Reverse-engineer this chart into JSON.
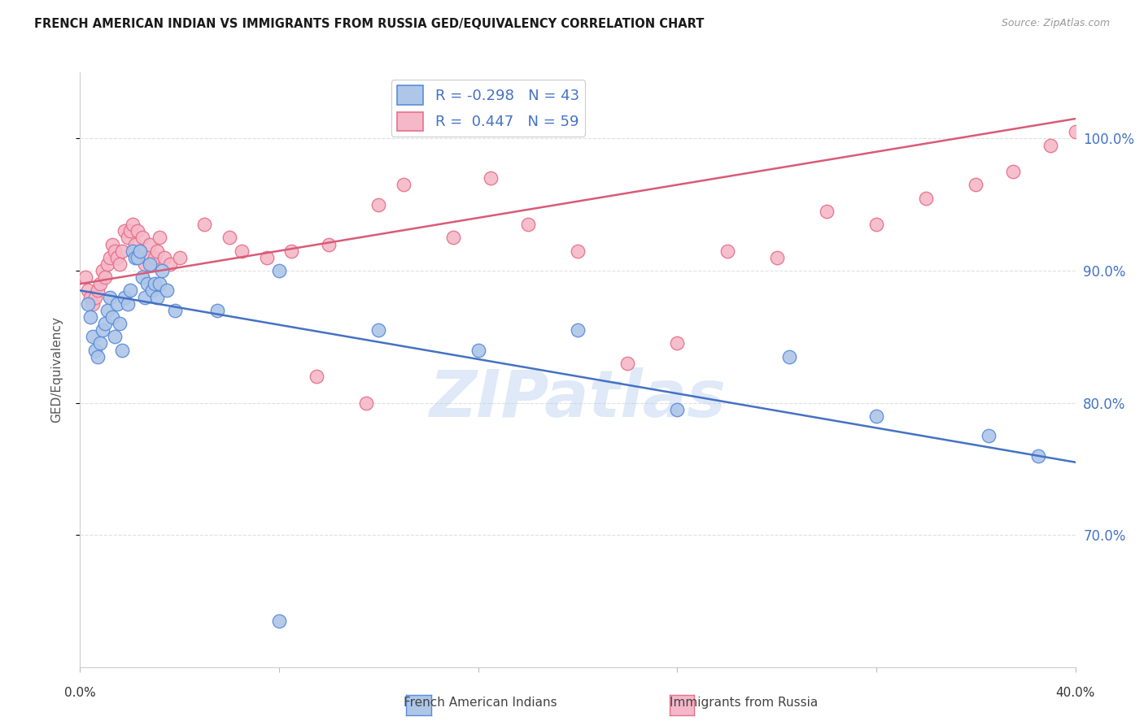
{
  "title": "FRENCH AMERICAN INDIAN VS IMMIGRANTS FROM RUSSIA GED/EQUIVALENCY CORRELATION CHART",
  "source": "Source: ZipAtlas.com",
  "ylabel": "GED/Equivalency",
  "x_min": 0.0,
  "x_max": 40.0,
  "y_min": 60.0,
  "y_max": 105.0,
  "y_ticks": [
    70.0,
    80.0,
    90.0,
    100.0
  ],
  "y_tick_labels": [
    "70.0%",
    "80.0%",
    "90.0%",
    "100.0%"
  ],
  "x_ticks": [
    0,
    8,
    16,
    24,
    32,
    40
  ],
  "legend_r_blue": "-0.298",
  "legend_n_blue": "43",
  "legend_r_pink": "0.447",
  "legend_n_pink": "59",
  "blue_fill": "#aec6e8",
  "pink_fill": "#f4b8c8",
  "blue_edge": "#5b8dd9",
  "pink_edge": "#e8708a",
  "blue_line": "#4472c4",
  "pink_line": "#d95b78",
  "watermark": "ZIPatlas",
  "blue_scatter_x": [
    0.3,
    0.4,
    0.5,
    0.6,
    0.7,
    0.8,
    0.9,
    1.0,
    1.1,
    1.2,
    1.3,
    1.4,
    1.5,
    1.6,
    1.7,
    1.8,
    1.9,
    2.0,
    2.1,
    2.2,
    2.3,
    2.4,
    2.5,
    2.6,
    2.7,
    2.8,
    2.9,
    3.0,
    3.1,
    3.2,
    3.3,
    3.5,
    3.8,
    5.5,
    8.0,
    12.0,
    16.0,
    20.0,
    24.0,
    28.5,
    32.0,
    36.5,
    38.5
  ],
  "blue_scatter_y": [
    87.5,
    86.5,
    85.0,
    84.0,
    83.5,
    84.5,
    85.5,
    86.0,
    87.0,
    88.0,
    86.5,
    85.0,
    87.5,
    86.0,
    84.0,
    88.0,
    87.5,
    88.5,
    91.5,
    91.0,
    91.0,
    91.5,
    89.5,
    88.0,
    89.0,
    90.5,
    88.5,
    89.0,
    88.0,
    89.0,
    90.0,
    88.5,
    87.0,
    87.0,
    90.0,
    85.5,
    84.0,
    85.5,
    79.5,
    83.5,
    79.0,
    77.5,
    76.0
  ],
  "pink_scatter_x": [
    0.2,
    0.3,
    0.4,
    0.5,
    0.6,
    0.7,
    0.8,
    0.9,
    1.0,
    1.1,
    1.2,
    1.3,
    1.4,
    1.5,
    1.6,
    1.7,
    1.8,
    1.9,
    2.0,
    2.1,
    2.2,
    2.3,
    2.4,
    2.5,
    2.6,
    2.7,
    2.8,
    2.9,
    3.0,
    3.1,
    3.2,
    3.4,
    3.6,
    4.0,
    5.0,
    6.0,
    7.5,
    8.5,
    10.0,
    12.0,
    13.0,
    15.0,
    16.5,
    18.0,
    20.0,
    22.0,
    24.0,
    26.0,
    28.0,
    30.0,
    32.0,
    34.0,
    36.0,
    37.5,
    39.0,
    40.0,
    6.5,
    9.5,
    11.5
  ],
  "pink_scatter_y": [
    89.5,
    88.5,
    88.0,
    87.5,
    88.0,
    88.5,
    89.0,
    90.0,
    89.5,
    90.5,
    91.0,
    92.0,
    91.5,
    91.0,
    90.5,
    91.5,
    93.0,
    92.5,
    93.0,
    93.5,
    92.0,
    93.0,
    91.5,
    92.5,
    90.5,
    91.0,
    92.0,
    90.5,
    91.0,
    91.5,
    92.5,
    91.0,
    90.5,
    91.0,
    93.5,
    92.5,
    91.0,
    91.5,
    92.0,
    95.0,
    96.5,
    92.5,
    97.0,
    93.5,
    91.5,
    83.0,
    84.5,
    91.5,
    91.0,
    94.5,
    93.5,
    95.5,
    96.5,
    97.5,
    99.5,
    100.5,
    91.5,
    82.0,
    80.0
  ],
  "blue_trend_x": [
    0.0,
    40.0
  ],
  "blue_trend_y": [
    88.5,
    75.5
  ],
  "pink_trend_x": [
    0.0,
    40.0
  ],
  "pink_trend_y": [
    89.0,
    101.5
  ],
  "blue_outlier_x": 8.0,
  "blue_outlier_y": 63.5,
  "grid_color": "#e0e0e0",
  "title_color": "#1a1a1a",
  "source_color": "#999999",
  "tick_label_color": "#4472c4",
  "ylabel_color": "#555555",
  "background": "#ffffff"
}
